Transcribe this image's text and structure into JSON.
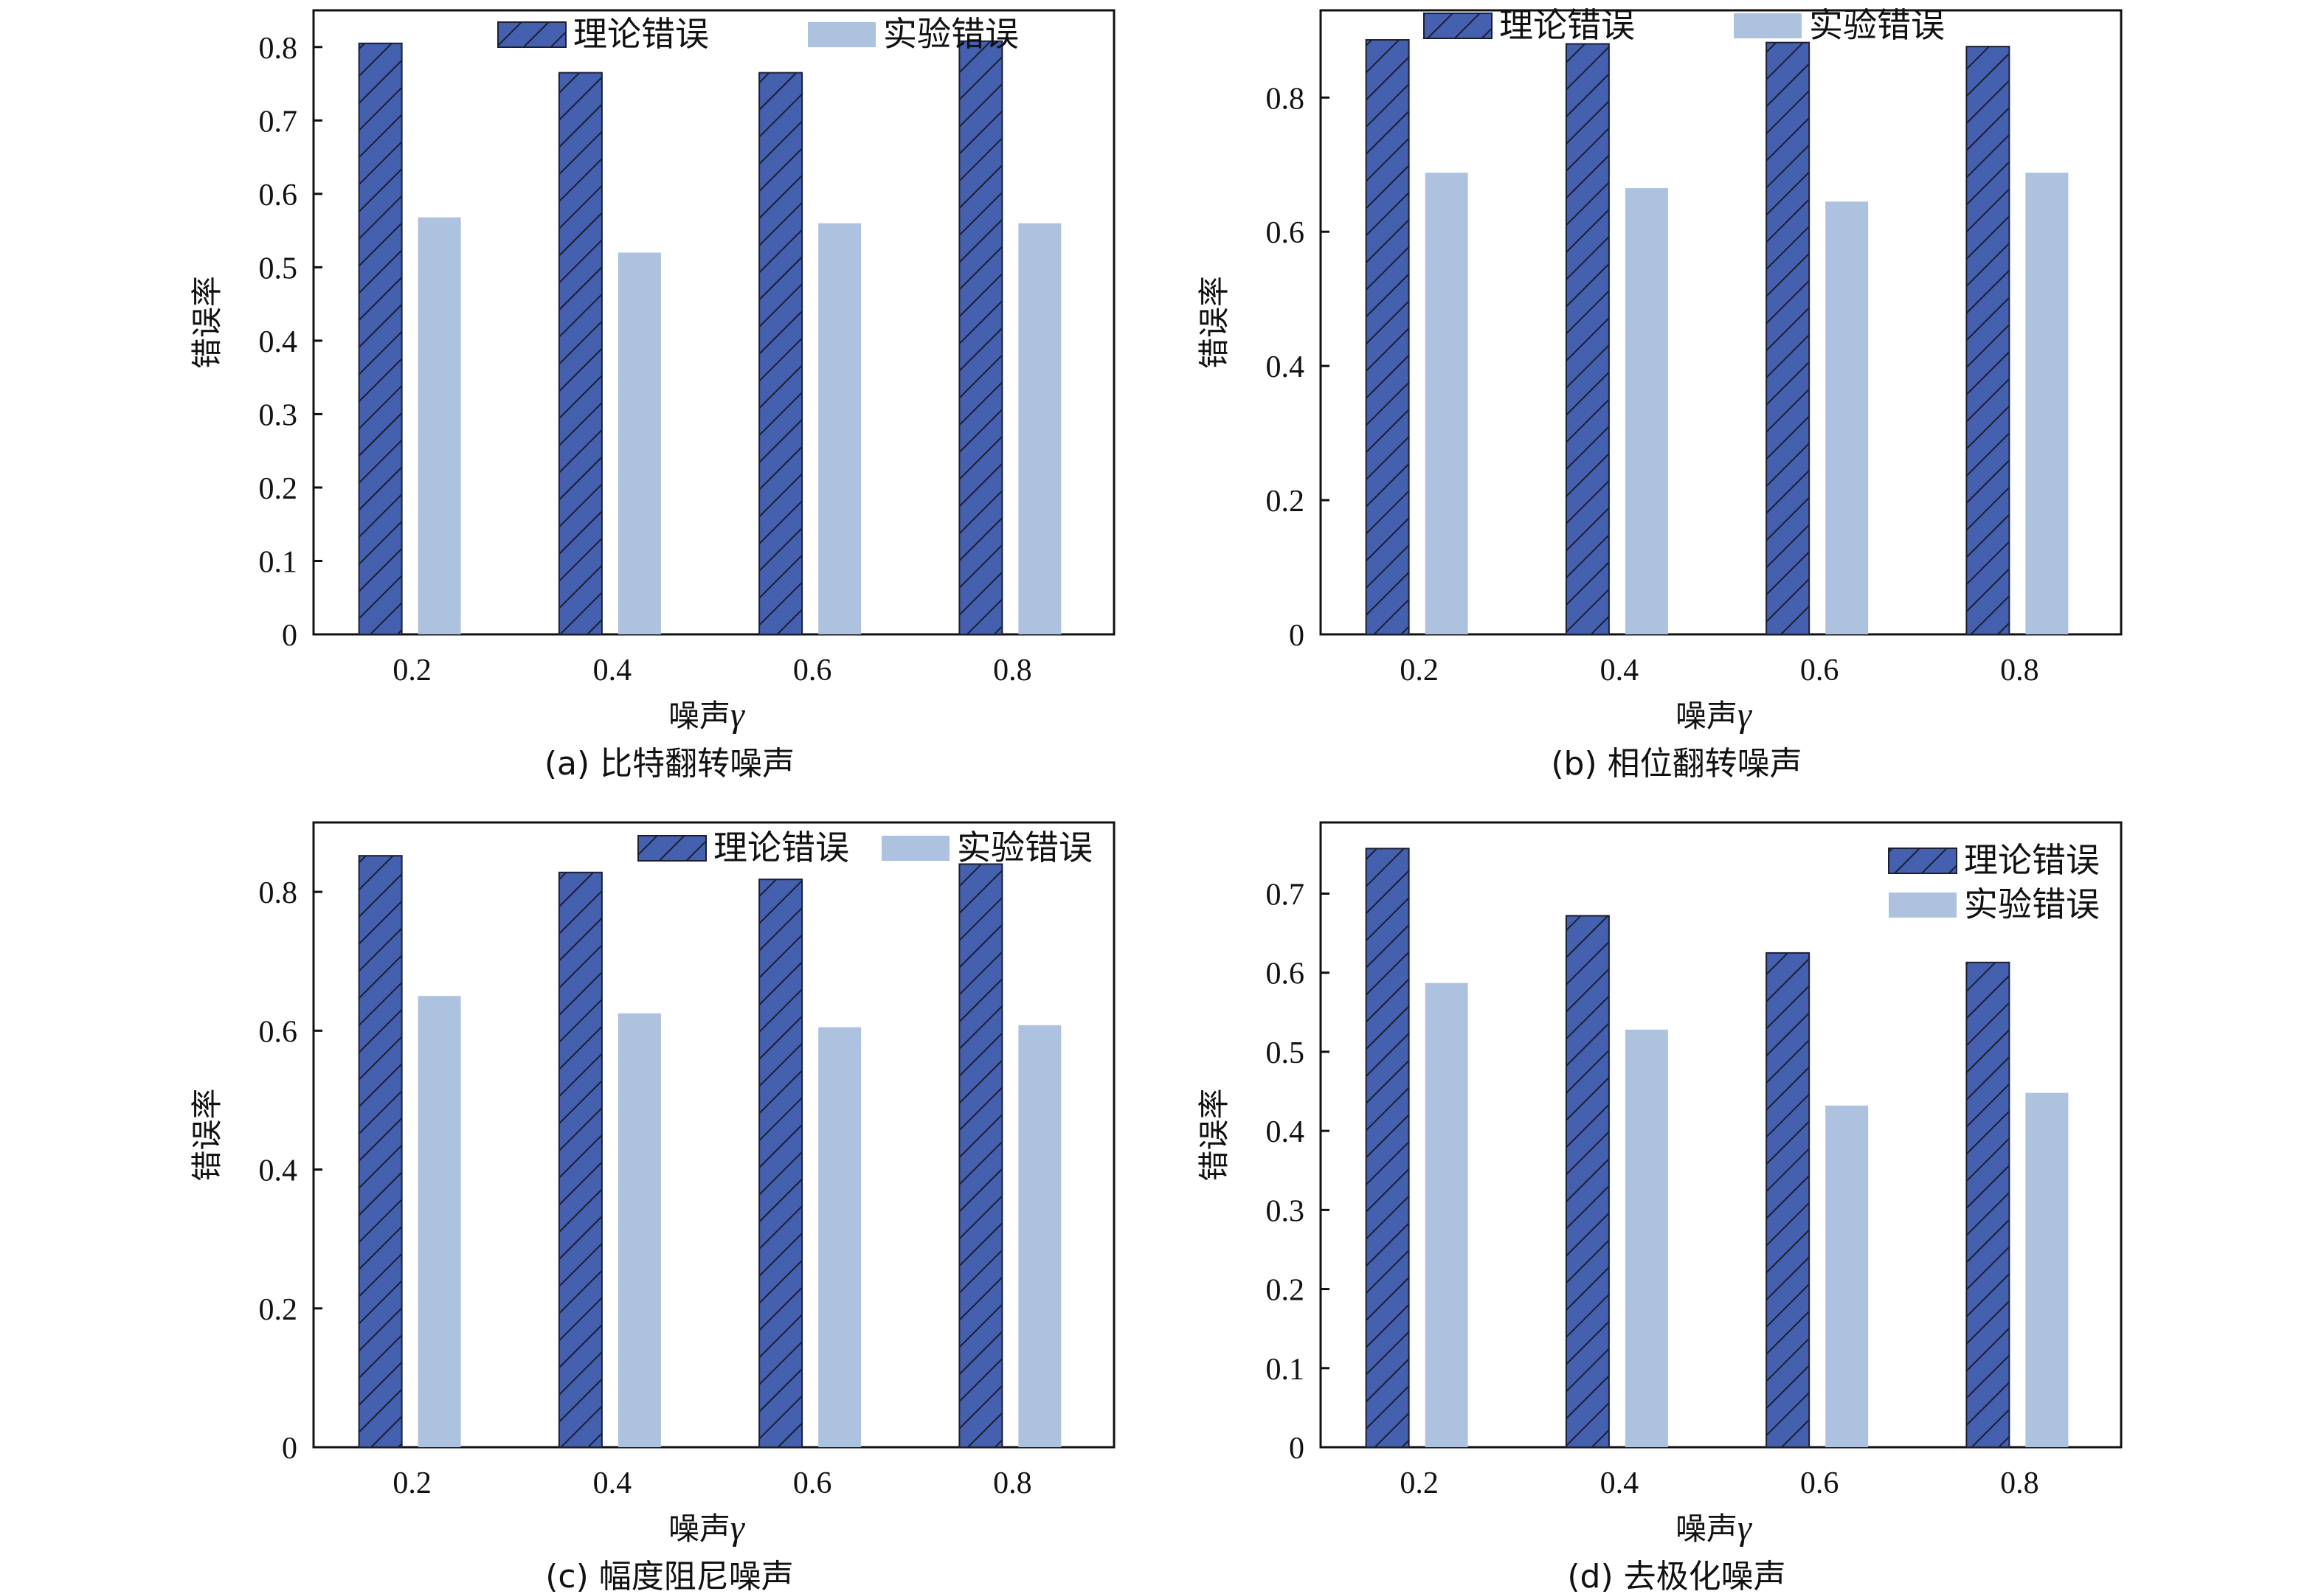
{
  "colors": {
    "theory": "#4460ae",
    "experiment": "#adc2df",
    "hatch": "#1a1f33",
    "axis": "#111111"
  },
  "chart_data": [
    {
      "type": "bar",
      "caption": "(a)  比特翻转噪声",
      "categories": [
        "0.2",
        "0.4",
        "0.6",
        "0.8"
      ],
      "xlabel_prefix": "噪声",
      "xlabel_symbol": "γ",
      "ylabel": "错误率",
      "ylim": [
        0,
        0.85
      ],
      "yticks": [
        0,
        0.1,
        0.2,
        0.3,
        0.4,
        0.5,
        0.6,
        0.7,
        0.8
      ],
      "ytick_labels": [
        "0",
        "0.1",
        "0.2",
        "0.3",
        "0.4",
        "0.5",
        "0.6",
        "0.7",
        "0.8"
      ],
      "legend": "top-center-horizontal",
      "series": [
        {
          "name": "理论错误",
          "values": [
            0.805,
            0.765,
            0.765,
            0.808
          ],
          "hatch": true
        },
        {
          "name": "实验错误",
          "values": [
            0.568,
            0.52,
            0.56,
            0.56
          ],
          "hatch": false
        }
      ]
    },
    {
      "type": "bar",
      "caption": "(b)  相位翻转噪声",
      "categories": [
        "0.2",
        "0.4",
        "0.6",
        "0.8"
      ],
      "xlabel_prefix": "噪声",
      "xlabel_symbol": "γ",
      "ylabel": "错误率",
      "ylim": [
        0,
        0.93
      ],
      "yticks": [
        0,
        0.2,
        0.4,
        0.6,
        0.8
      ],
      "ytick_labels": [
        "0",
        "0.2",
        "0.4",
        "0.6",
        "0.8"
      ],
      "legend": "top-center-horizontal",
      "series": [
        {
          "name": "理论错误",
          "values": [
            0.886,
            0.88,
            0.882,
            0.876
          ],
          "hatch": true
        },
        {
          "name": "实验错误",
          "values": [
            0.688,
            0.665,
            0.645,
            0.688
          ],
          "hatch": false
        }
      ]
    },
    {
      "type": "bar",
      "caption": "(c)  幅度阻尼噪声",
      "categories": [
        "0.2",
        "0.4",
        "0.6",
        "0.8"
      ],
      "xlabel_prefix": "噪声",
      "xlabel_symbol": "γ",
      "ylabel": "错误率",
      "ylim": [
        0,
        0.9
      ],
      "yticks": [
        0,
        0.2,
        0.4,
        0.6,
        0.8
      ],
      "ytick_labels": [
        "0",
        "0.2",
        "0.4",
        "0.6",
        "0.8"
      ],
      "legend": "top-right-horizontal",
      "series": [
        {
          "name": "理论错误",
          "values": [
            0.852,
            0.828,
            0.818,
            0.84
          ],
          "hatch": true
        },
        {
          "name": "实验错误",
          "values": [
            0.65,
            0.625,
            0.605,
            0.608
          ],
          "hatch": false
        }
      ]
    },
    {
      "type": "bar",
      "caption": "(d)  去极化噪声",
      "categories": [
        "0.2",
        "0.4",
        "0.6",
        "0.8"
      ],
      "xlabel_prefix": "噪声",
      "xlabel_symbol": "γ",
      "ylabel": "错误率",
      "ylim": [
        0,
        0.79
      ],
      "yticks": [
        0,
        0.1,
        0.2,
        0.3,
        0.4,
        0.5,
        0.6,
        0.7
      ],
      "ytick_labels": [
        "0",
        "0.1",
        "0.2",
        "0.3",
        "0.4",
        "0.5",
        "0.6",
        "0.7"
      ],
      "legend": "top-right-vertical",
      "series": [
        {
          "name": "理论错误",
          "values": [
            0.757,
            0.672,
            0.625,
            0.613
          ],
          "hatch": true
        },
        {
          "name": "实验错误",
          "values": [
            0.587,
            0.528,
            0.432,
            0.448
          ],
          "hatch": false
        }
      ]
    }
  ]
}
